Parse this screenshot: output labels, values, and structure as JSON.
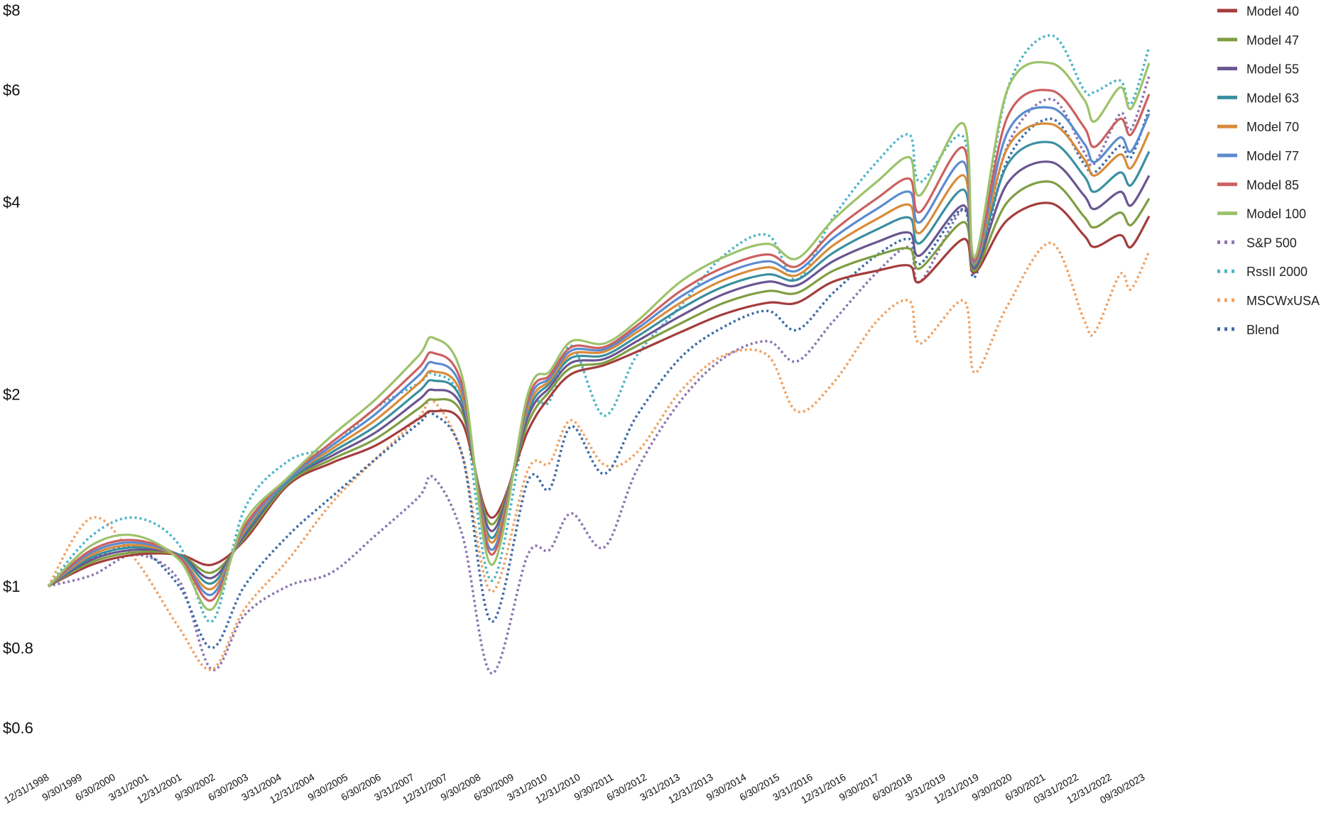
{
  "chart_data": {
    "type": "line",
    "title": "",
    "xlabel": "",
    "ylabel": "",
    "y_scale": "log",
    "ylim": [
      0.55,
      8
    ],
    "grid": false,
    "legend_position": "right",
    "y_ticks": [
      {
        "value": 8,
        "label": "$8"
      },
      {
        "value": 6,
        "label": "$6"
      },
      {
        "value": 4,
        "label": "$4"
      },
      {
        "value": 2,
        "label": "$2"
      },
      {
        "value": 1,
        "label": "$1"
      },
      {
        "value": 0.8,
        "label": "$0.8"
      },
      {
        "value": 0.6,
        "label": "$0.6"
      }
    ],
    "x_tick_labels": [
      "12/31/1998",
      "9/30/1999",
      "6/30/2000",
      "3/31/2001",
      "12/31/2001",
      "9/30/2002",
      "6/30/2003",
      "3/31/2004",
      "12/31/2004",
      "9/30/2005",
      "6/30/2006",
      "3/31/2007",
      "12/31/2007",
      "9/30/2008",
      "6/30/2009",
      "3/31/2010",
      "12/31/2010",
      "9/30/2011",
      "6/30/2012",
      "3/31/2013",
      "12/31/2013",
      "9/30/2014",
      "6/30/2015",
      "3/31/2016",
      "12/31/2016",
      "9/30/2017",
      "6/30/2018",
      "3/31/2019",
      "12/31/2019",
      "9/30/2020",
      "6/30/2021",
      "03/31/2022",
      "12/31/2022",
      "09/30/2023"
    ],
    "x": [
      "1998-12",
      "1999-12",
      "2000-12",
      "2001-12",
      "2002-09",
      "2003-06",
      "2004-06",
      "2005-06",
      "2006-06",
      "2007-06",
      "2007-10",
      "2008-06",
      "2009-02",
      "2009-12",
      "2010-06",
      "2010-12",
      "2011-09",
      "2012-06",
      "2013-06",
      "2014-06",
      "2015-06",
      "2016-02",
      "2016-12",
      "2017-12",
      "2018-09",
      "2018-12",
      "2019-12",
      "2020-03",
      "2020-12",
      "2021-12",
      "2022-09",
      "2022-12",
      "2023-07",
      "2023-10",
      "2024-03"
    ],
    "series": [
      {
        "name": "Model 40",
        "color": "#a43c3c",
        "dash": "solid",
        "values": [
          1.0,
          1.08,
          1.12,
          1.12,
          1.08,
          1.18,
          1.44,
          1.56,
          1.66,
          1.83,
          1.88,
          1.8,
          1.28,
          1.75,
          1.98,
          2.15,
          2.22,
          2.33,
          2.5,
          2.67,
          2.78,
          2.78,
          3.0,
          3.12,
          3.18,
          3.0,
          3.5,
          3.1,
          3.75,
          3.98,
          3.55,
          3.4,
          3.55,
          3.4,
          3.8
        ]
      },
      {
        "name": "Model 47",
        "color": "#7f9e42",
        "dash": "solid",
        "values": [
          1.0,
          1.09,
          1.13,
          1.12,
          1.05,
          1.19,
          1.45,
          1.58,
          1.7,
          1.9,
          1.96,
          1.86,
          1.25,
          1.8,
          2.02,
          2.2,
          2.24,
          2.38,
          2.58,
          2.78,
          2.9,
          2.88,
          3.12,
          3.3,
          3.38,
          3.15,
          3.72,
          3.12,
          4.0,
          4.3,
          3.8,
          3.65,
          3.85,
          3.68,
          4.05
        ]
      },
      {
        "name": "Model 55",
        "color": "#6a5590",
        "dash": "solid",
        "values": [
          1.0,
          1.1,
          1.14,
          1.12,
          1.03,
          1.2,
          1.46,
          1.6,
          1.74,
          1.96,
          2.03,
          1.9,
          1.22,
          1.84,
          2.05,
          2.24,
          2.27,
          2.42,
          2.65,
          2.87,
          3.0,
          2.96,
          3.23,
          3.46,
          3.58,
          3.3,
          3.95,
          3.15,
          4.28,
          4.62,
          4.1,
          3.9,
          4.15,
          3.95,
          4.4
        ]
      },
      {
        "name": "Model 63",
        "color": "#3a8fa0",
        "dash": "solid",
        "values": [
          1.0,
          1.11,
          1.15,
          1.12,
          1.01,
          1.21,
          1.46,
          1.62,
          1.78,
          2.02,
          2.1,
          1.94,
          1.19,
          1.87,
          2.08,
          2.28,
          2.3,
          2.46,
          2.72,
          2.95,
          3.08,
          3.02,
          3.33,
          3.62,
          3.78,
          3.45,
          4.18,
          3.18,
          4.58,
          4.96,
          4.4,
          4.15,
          4.45,
          4.25,
          4.8
        ]
      },
      {
        "name": "Model 70",
        "color": "#d98b3a",
        "dash": "solid",
        "values": [
          1.0,
          1.12,
          1.16,
          1.11,
          0.99,
          1.22,
          1.47,
          1.64,
          1.82,
          2.08,
          2.17,
          1.98,
          1.17,
          1.9,
          2.1,
          2.31,
          2.33,
          2.5,
          2.78,
          3.02,
          3.16,
          3.07,
          3.42,
          3.76,
          3.96,
          3.58,
          4.4,
          3.2,
          4.86,
          5.3,
          4.68,
          4.4,
          4.75,
          4.52,
          5.15
        ]
      },
      {
        "name": "Model 77",
        "color": "#5b8bd0",
        "dash": "solid",
        "values": [
          1.0,
          1.13,
          1.17,
          1.11,
          0.97,
          1.23,
          1.47,
          1.66,
          1.86,
          2.14,
          2.24,
          2.02,
          1.14,
          1.93,
          2.12,
          2.34,
          2.35,
          2.53,
          2.84,
          3.09,
          3.23,
          3.12,
          3.51,
          3.9,
          4.15,
          3.72,
          4.62,
          3.22,
          5.14,
          5.62,
          4.95,
          4.62,
          5.05,
          4.8,
          5.5
        ]
      },
      {
        "name": "Model 85",
        "color": "#cc6060",
        "dash": "solid",
        "values": [
          1.0,
          1.14,
          1.18,
          1.11,
          0.95,
          1.24,
          1.48,
          1.68,
          1.9,
          2.2,
          2.32,
          2.06,
          1.12,
          1.96,
          2.14,
          2.37,
          2.37,
          2.56,
          2.9,
          3.16,
          3.31,
          3.17,
          3.6,
          4.05,
          4.35,
          3.86,
          4.86,
          3.24,
          5.44,
          5.98,
          5.25,
          4.88,
          5.4,
          5.1,
          5.9
        ]
      },
      {
        "name": "Model 100",
        "color": "#9cc26a",
        "dash": "solid",
        "values": [
          1.0,
          1.16,
          1.2,
          1.1,
          0.92,
          1.26,
          1.48,
          1.72,
          1.96,
          2.3,
          2.45,
          2.12,
          1.08,
          2.0,
          2.17,
          2.42,
          2.4,
          2.6,
          3.0,
          3.28,
          3.44,
          3.26,
          3.75,
          4.3,
          4.7,
          4.1,
          5.3,
          3.28,
          6.0,
          6.6,
          5.8,
          5.35,
          6.05,
          5.6,
          6.6
        ]
      },
      {
        "name": "S&P 500",
        "color": "#8a72b0",
        "dash": "dotted",
        "values": [
          1.0,
          1.04,
          1.12,
          1.02,
          0.74,
          0.9,
          1.0,
          1.05,
          1.2,
          1.38,
          1.48,
          1.2,
          0.73,
          1.12,
          1.14,
          1.3,
          1.15,
          1.52,
          1.95,
          2.28,
          2.42,
          2.25,
          2.6,
          3.1,
          3.4,
          3.0,
          3.9,
          3.1,
          4.9,
          5.8,
          4.8,
          4.6,
          5.5,
          5.2,
          6.3
        ]
      },
      {
        "name": "RssII 2000",
        "color": "#4ab3c8",
        "dash": "dotted",
        "values": [
          1.0,
          1.2,
          1.28,
          1.16,
          0.88,
          1.32,
          1.57,
          1.66,
          1.9,
          2.08,
          2.15,
          1.92,
          1.02,
          1.85,
          1.95,
          2.38,
          1.85,
          2.3,
          2.75,
          3.3,
          3.55,
          3.02,
          3.78,
          4.62,
          5.1,
          4.3,
          5.05,
          3.12,
          6.0,
          7.3,
          6.0,
          5.95,
          6.2,
          5.7,
          7.0
        ]
      },
      {
        "name": "MSCWxUSA",
        "color": "#f0a060",
        "dash": "dotted",
        "values": [
          1.0,
          1.28,
          1.1,
          0.86,
          0.74,
          0.92,
          1.1,
          1.35,
          1.58,
          1.84,
          1.95,
          1.6,
          0.98,
          1.52,
          1.56,
          1.82,
          1.55,
          1.62,
          2.02,
          2.3,
          2.3,
          1.88,
          2.08,
          2.6,
          2.8,
          2.4,
          2.8,
          2.16,
          2.75,
          3.45,
          2.62,
          2.5,
          3.08,
          2.92,
          3.35
        ]
      },
      {
        "name": "Blend",
        "color": "#3a6aa5",
        "dash": "dotted",
        "values": [
          1.0,
          1.1,
          1.15,
          1.0,
          0.8,
          1.0,
          1.2,
          1.38,
          1.58,
          1.8,
          1.86,
          1.6,
          0.88,
          1.46,
          1.42,
          1.78,
          1.5,
          1.85,
          2.28,
          2.55,
          2.7,
          2.52,
          2.88,
          3.3,
          3.5,
          3.2,
          3.9,
          3.05,
          4.65,
          5.4,
          4.6,
          4.45,
          4.9,
          4.7,
          5.6
        ]
      }
    ]
  }
}
